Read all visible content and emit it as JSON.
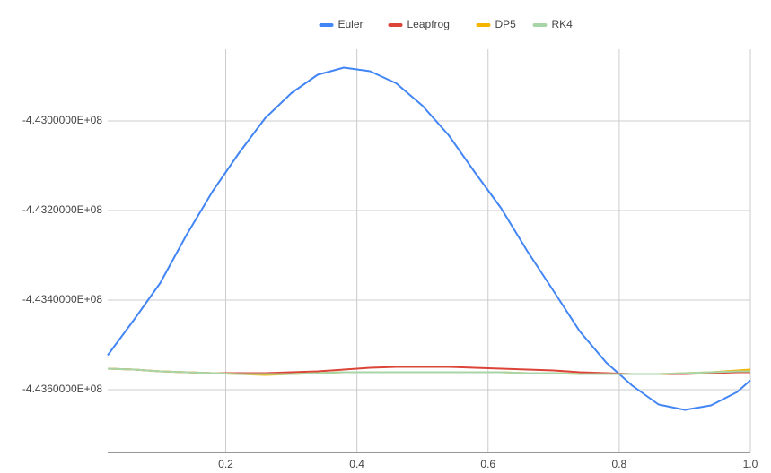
{
  "chart_data": {
    "type": "line",
    "x": [
      0.02,
      0.06,
      0.1,
      0.14,
      0.18,
      0.22,
      0.26,
      0.3,
      0.34,
      0.38,
      0.42,
      0.46,
      0.5,
      0.54,
      0.58,
      0.62,
      0.66,
      0.7,
      0.74,
      0.78,
      0.82,
      0.86,
      0.9,
      0.94,
      0.98,
      1.0
    ],
    "series": [
      {
        "name": "Euler",
        "color": "#4285f4",
        "values": [
          -443523000,
          -443444000,
          -443362000,
          -443255000,
          -443157000,
          -443072000,
          -442994000,
          -442938000,
          -442897000,
          -442881000,
          -442889000,
          -442916000,
          -442966000,
          -443032000,
          -443115000,
          -443195000,
          -443291000,
          -443380000,
          -443470000,
          -443539000,
          -443591000,
          -443633000,
          -443645000,
          -443635000,
          -443605000,
          -443579000
        ]
      },
      {
        "name": "Leapfrog",
        "color": "#db4437",
        "values": [
          -443553000,
          -443555000,
          -443559000,
          -443561000,
          -443563000,
          -443563000,
          -443563000,
          -443561000,
          -443559000,
          -443555000,
          -443551000,
          -443549000,
          -443549000,
          -443549000,
          -443551000,
          -443553000,
          -443555000,
          -443557000,
          -443561000,
          -443563000,
          -443565000,
          -443565000,
          -443565000,
          -443563000,
          -443561000,
          -443561000
        ]
      },
      {
        "name": "DP5",
        "color": "#f4b400",
        "values": [
          -443553000,
          -443555000,
          -443559000,
          -443561000,
          -443563000,
          -443565000,
          -443567000,
          -443565000,
          -443563000,
          -443561000,
          -443561000,
          -443561000,
          -443561000,
          -443561000,
          -443561000,
          -443561000,
          -443563000,
          -443563000,
          -443565000,
          -443565000,
          -443565000,
          -443565000,
          -443563000,
          -443561000,
          -443557000,
          -443555000
        ]
      },
      {
        "name": "RK4",
        "color": "#a8d5a8",
        "values": [
          -443553000,
          -443555000,
          -443559000,
          -443561000,
          -443563000,
          -443565000,
          -443565000,
          -443565000,
          -443563000,
          -443561000,
          -443561000,
          -443561000,
          -443561000,
          -443561000,
          -443561000,
          -443561000,
          -443563000,
          -443563000,
          -443565000,
          -443565000,
          -443565000,
          -443565000,
          -443563000,
          -443561000,
          -443559000,
          -443559000
        ]
      }
    ],
    "xlim": [
      0.02,
      1.0
    ],
    "xticks": [
      0.2,
      0.4,
      0.6,
      0.8,
      {
        "value": 1.0,
        "label": "1.0"
      }
    ],
    "ylim": [
      -443740000,
      -442840000
    ],
    "yticks": [
      {
        "value": -443000000,
        "label": "-4.4300000E+08"
      },
      {
        "value": -443200000,
        "label": "-4.4320000E+08"
      },
      {
        "value": -443400000,
        "label": "-4.4340000E+08"
      },
      {
        "value": -443600000,
        "label": "-4.4360000E+08"
      }
    ],
    "grid": true,
    "legend": "top"
  }
}
